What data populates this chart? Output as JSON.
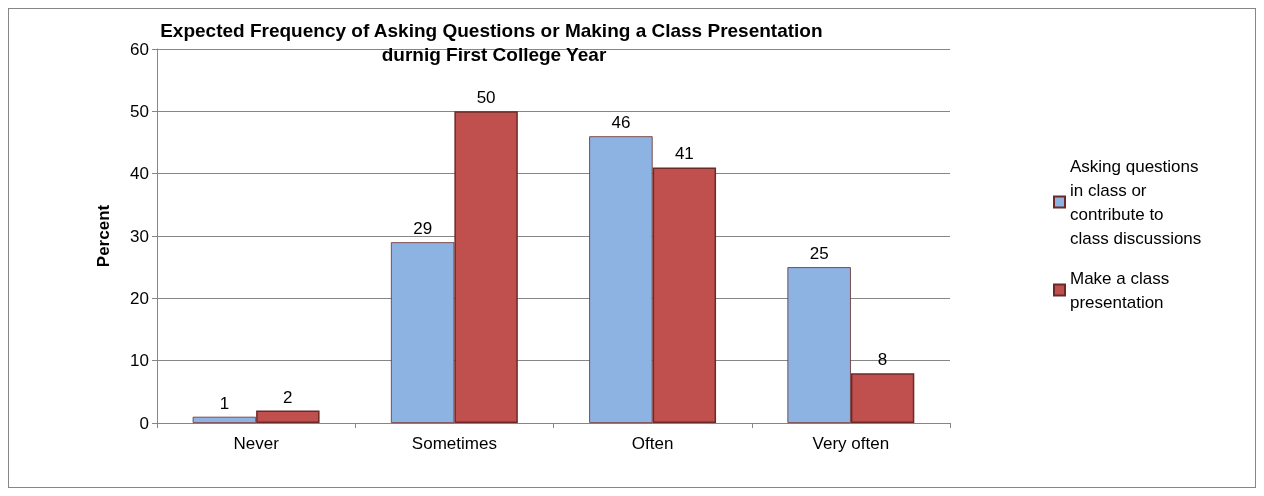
{
  "chart_data": {
    "type": "bar",
    "title": "Expected Frequency of Asking Questions or Making a Class Presentation durnig First College Year",
    "ylabel": "Percent",
    "categories": [
      "Never",
      "Sometimes",
      "Often",
      "Very often"
    ],
    "series": [
      {
        "name": "Asking questions in class or contribute to class discussions",
        "color": "#8db3e2",
        "values": [
          1,
          29,
          46,
          25
        ]
      },
      {
        "name": "Make a class presentation",
        "color": "#c0504d",
        "values": [
          2,
          50,
          41,
          8
        ]
      }
    ],
    "ylim": [
      0,
      60
    ],
    "yticks": [
      0,
      10,
      20,
      30,
      40,
      50,
      60
    ],
    "grid": "y",
    "legend": "right",
    "data_labels": true
  }
}
